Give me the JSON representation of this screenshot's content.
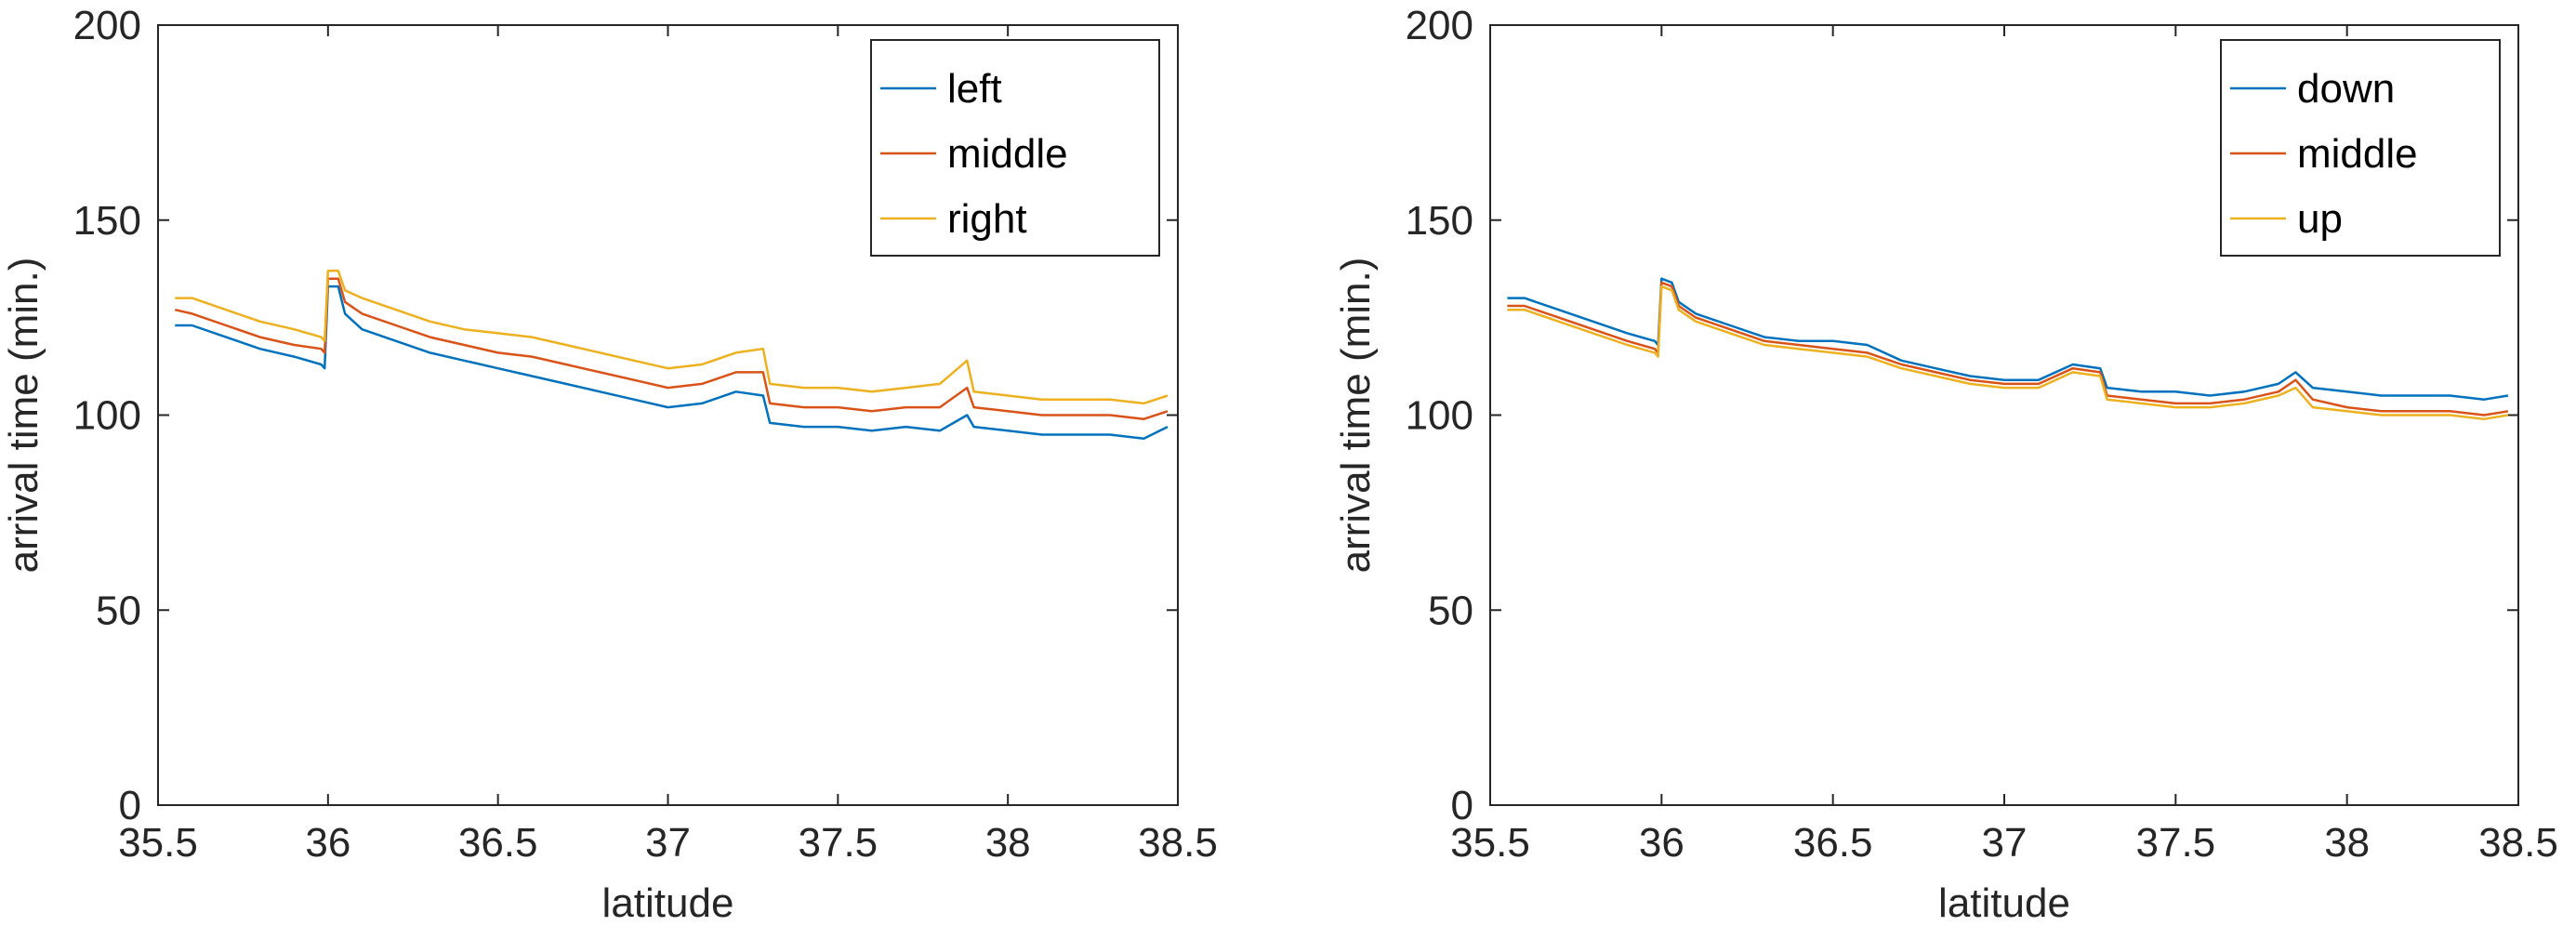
{
  "chart_data": [
    {
      "type": "line",
      "xlabel": "latitude",
      "ylabel": "arrival time (min.)",
      "xlim": [
        35.5,
        38.5
      ],
      "ylim": [
        0,
        200
      ],
      "xticks": [
        35.5,
        36,
        36.5,
        37,
        37.5,
        38,
        38.5
      ],
      "xtick_labels": [
        "35.5",
        "36",
        "36.5",
        "37",
        "37.5",
        "38",
        "38.5"
      ],
      "yticks": [
        0,
        50,
        100,
        150,
        200
      ],
      "ytick_labels": [
        "0",
        "50",
        "100",
        "150",
        "200"
      ],
      "grid": false,
      "legend_position": "top-right",
      "series": [
        {
          "name": "left",
          "color": "#0072BD",
          "x": [
            35.55,
            35.6,
            35.7,
            35.8,
            35.9,
            35.98,
            35.99,
            36.0,
            36.03,
            36.05,
            36.1,
            36.2,
            36.3,
            36.4,
            36.5,
            36.6,
            36.7,
            36.8,
            36.9,
            37.0,
            37.1,
            37.2,
            37.28,
            37.3,
            37.4,
            37.5,
            37.6,
            37.7,
            37.8,
            37.88,
            37.9,
            38.0,
            38.1,
            38.2,
            38.3,
            38.4,
            38.47
          ],
          "y": [
            123,
            123,
            120,
            117,
            115,
            113,
            112,
            133,
            133,
            126,
            122,
            119,
            116,
            114,
            112,
            110,
            108,
            106,
            104,
            102,
            103,
            106,
            105,
            98,
            97,
            97,
            96,
            97,
            96,
            100,
            97,
            96,
            95,
            95,
            95,
            94,
            97
          ]
        },
        {
          "name": "middle",
          "color": "#D95319",
          "x": [
            35.55,
            35.6,
            35.7,
            35.8,
            35.9,
            35.98,
            35.99,
            36.0,
            36.03,
            36.05,
            36.1,
            36.2,
            36.3,
            36.4,
            36.5,
            36.6,
            36.7,
            36.8,
            36.9,
            37.0,
            37.1,
            37.2,
            37.28,
            37.3,
            37.4,
            37.5,
            37.6,
            37.7,
            37.8,
            37.88,
            37.9,
            38.0,
            38.1,
            38.2,
            38.3,
            38.4,
            38.47
          ],
          "y": [
            127,
            126,
            123,
            120,
            118,
            117,
            116,
            135,
            135,
            129,
            126,
            123,
            120,
            118,
            116,
            115,
            113,
            111,
            109,
            107,
            108,
            111,
            111,
            103,
            102,
            102,
            101,
            102,
            102,
            107,
            102,
            101,
            100,
            100,
            100,
            99,
            101
          ]
        },
        {
          "name": "right",
          "color": "#EDB120",
          "x": [
            35.55,
            35.6,
            35.7,
            35.8,
            35.9,
            35.98,
            35.99,
            36.0,
            36.03,
            36.05,
            36.1,
            36.2,
            36.3,
            36.4,
            36.5,
            36.6,
            36.7,
            36.8,
            36.9,
            37.0,
            37.1,
            37.2,
            37.28,
            37.3,
            37.4,
            37.5,
            37.6,
            37.7,
            37.8,
            37.88,
            37.9,
            38.0,
            38.1,
            38.2,
            38.3,
            38.4,
            38.47
          ],
          "y": [
            130,
            130,
            127,
            124,
            122,
            120,
            119,
            137,
            137,
            132,
            130,
            127,
            124,
            122,
            121,
            120,
            118,
            116,
            114,
            112,
            113,
            116,
            117,
            108,
            107,
            107,
            106,
            107,
            108,
            114,
            106,
            105,
            104,
            104,
            104,
            103,
            105
          ]
        }
      ]
    },
    {
      "type": "line",
      "xlabel": "latitude",
      "ylabel": "arrival time (min.)",
      "xlim": [
        35.5,
        38.5
      ],
      "ylim": [
        0,
        200
      ],
      "xticks": [
        35.5,
        36,
        36.5,
        37,
        37.5,
        38,
        38.5
      ],
      "xtick_labels": [
        "35.5",
        "36",
        "36.5",
        "37",
        "37.5",
        "38",
        "38.5"
      ],
      "yticks": [
        0,
        50,
        100,
        150,
        200
      ],
      "ytick_labels": [
        "0",
        "50",
        "100",
        "150",
        "200"
      ],
      "grid": false,
      "legend_position": "top-right",
      "series": [
        {
          "name": "down",
          "color": "#0072BD",
          "x": [
            35.55,
            35.6,
            35.7,
            35.8,
            35.9,
            35.98,
            35.99,
            36.0,
            36.03,
            36.05,
            36.1,
            36.2,
            36.3,
            36.4,
            36.5,
            36.6,
            36.7,
            36.8,
            36.9,
            37.0,
            37.1,
            37.2,
            37.28,
            37.3,
            37.4,
            37.5,
            37.6,
            37.7,
            37.8,
            37.85,
            37.9,
            38.0,
            38.1,
            38.2,
            38.3,
            38.4,
            38.47
          ],
          "y": [
            130,
            130,
            127,
            124,
            121,
            119,
            118,
            135,
            134,
            129,
            126,
            123,
            120,
            119,
            119,
            118,
            114,
            112,
            110,
            109,
            109,
            113,
            112,
            107,
            106,
            106,
            105,
            106,
            108,
            111,
            107,
            106,
            105,
            105,
            105,
            104,
            105
          ]
        },
        {
          "name": "middle",
          "color": "#D95319",
          "x": [
            35.55,
            35.6,
            35.7,
            35.8,
            35.9,
            35.98,
            35.99,
            36.0,
            36.03,
            36.05,
            36.1,
            36.2,
            36.3,
            36.4,
            36.5,
            36.6,
            36.7,
            36.8,
            36.9,
            37.0,
            37.1,
            37.2,
            37.28,
            37.3,
            37.4,
            37.5,
            37.6,
            37.7,
            37.8,
            37.85,
            37.9,
            38.0,
            38.1,
            38.2,
            38.3,
            38.4,
            38.47
          ],
          "y": [
            128,
            128,
            125,
            122,
            119,
            117,
            116,
            134,
            133,
            128,
            125,
            122,
            119,
            118,
            117,
            116,
            113,
            111,
            109,
            108,
            108,
            112,
            111,
            105,
            104,
            103,
            103,
            104,
            106,
            109,
            104,
            102,
            101,
            101,
            101,
            100,
            101
          ]
        },
        {
          "name": "up",
          "color": "#EDB120",
          "x": [
            35.55,
            35.6,
            35.7,
            35.8,
            35.9,
            35.98,
            35.99,
            36.0,
            36.03,
            36.05,
            36.1,
            36.2,
            36.3,
            36.4,
            36.5,
            36.6,
            36.7,
            36.8,
            36.9,
            37.0,
            37.1,
            37.2,
            37.28,
            37.3,
            37.4,
            37.5,
            37.6,
            37.7,
            37.8,
            37.85,
            37.9,
            38.0,
            38.1,
            38.2,
            38.3,
            38.4,
            38.47
          ],
          "y": [
            127,
            127,
            124,
            121,
            118,
            116,
            115,
            133,
            132,
            127,
            124,
            121,
            118,
            117,
            116,
            115,
            112,
            110,
            108,
            107,
            107,
            111,
            110,
            104,
            103,
            102,
            102,
            103,
            105,
            107,
            102,
            101,
            100,
            100,
            100,
            99,
            100
          ]
        }
      ]
    }
  ]
}
